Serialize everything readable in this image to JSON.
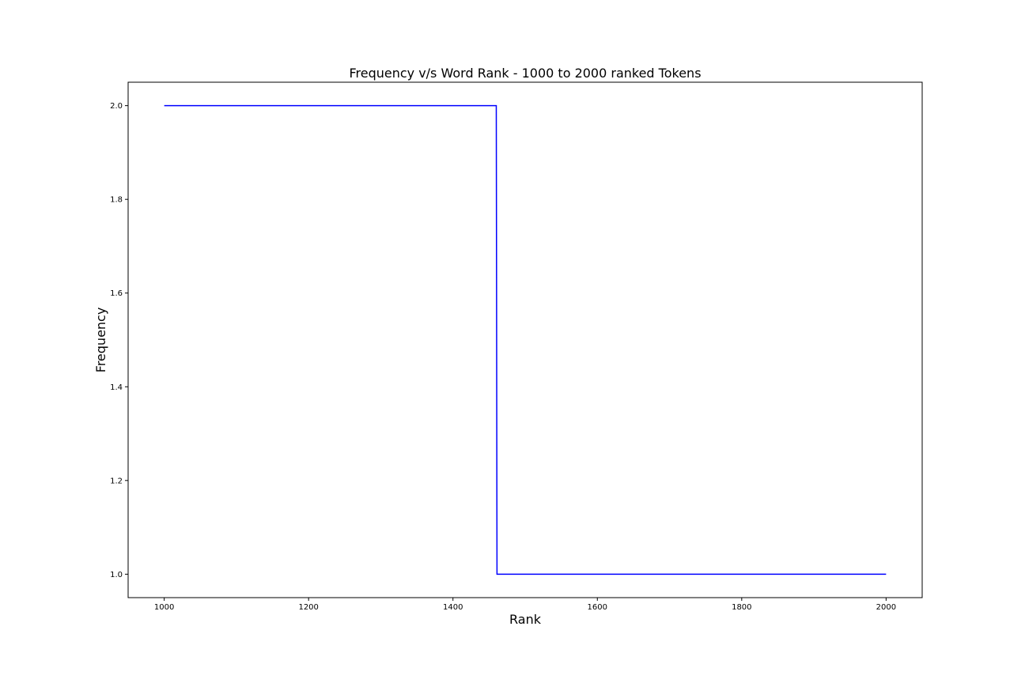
{
  "chart_data": {
    "type": "line",
    "title": "Frequency v/s Word Rank - 1000 to 2000 ranked Tokens",
    "xlabel": "Rank",
    "ylabel": "Frequency",
    "xlim": [
      950,
      2050
    ],
    "ylim": [
      0.95,
      2.05
    ],
    "grid": false,
    "x_ticks": [
      1000,
      1200,
      1400,
      1600,
      1800,
      2000
    ],
    "x_tick_labels": [
      "1000",
      "1200",
      "1400",
      "1600",
      "1800",
      "2000"
    ],
    "y_ticks": [
      1.0,
      1.2,
      1.4,
      1.6,
      1.8,
      2.0
    ],
    "y_tick_labels": [
      "1.0",
      "1.2",
      "1.4",
      "1.6",
      "1.8",
      "2.0"
    ],
    "series": [
      {
        "color": "#0000ff",
        "points": [
          [
            1000,
            2.0
          ],
          [
            1460,
            2.0
          ],
          [
            1461,
            1.0
          ],
          [
            2000,
            1.0
          ]
        ]
      }
    ]
  }
}
